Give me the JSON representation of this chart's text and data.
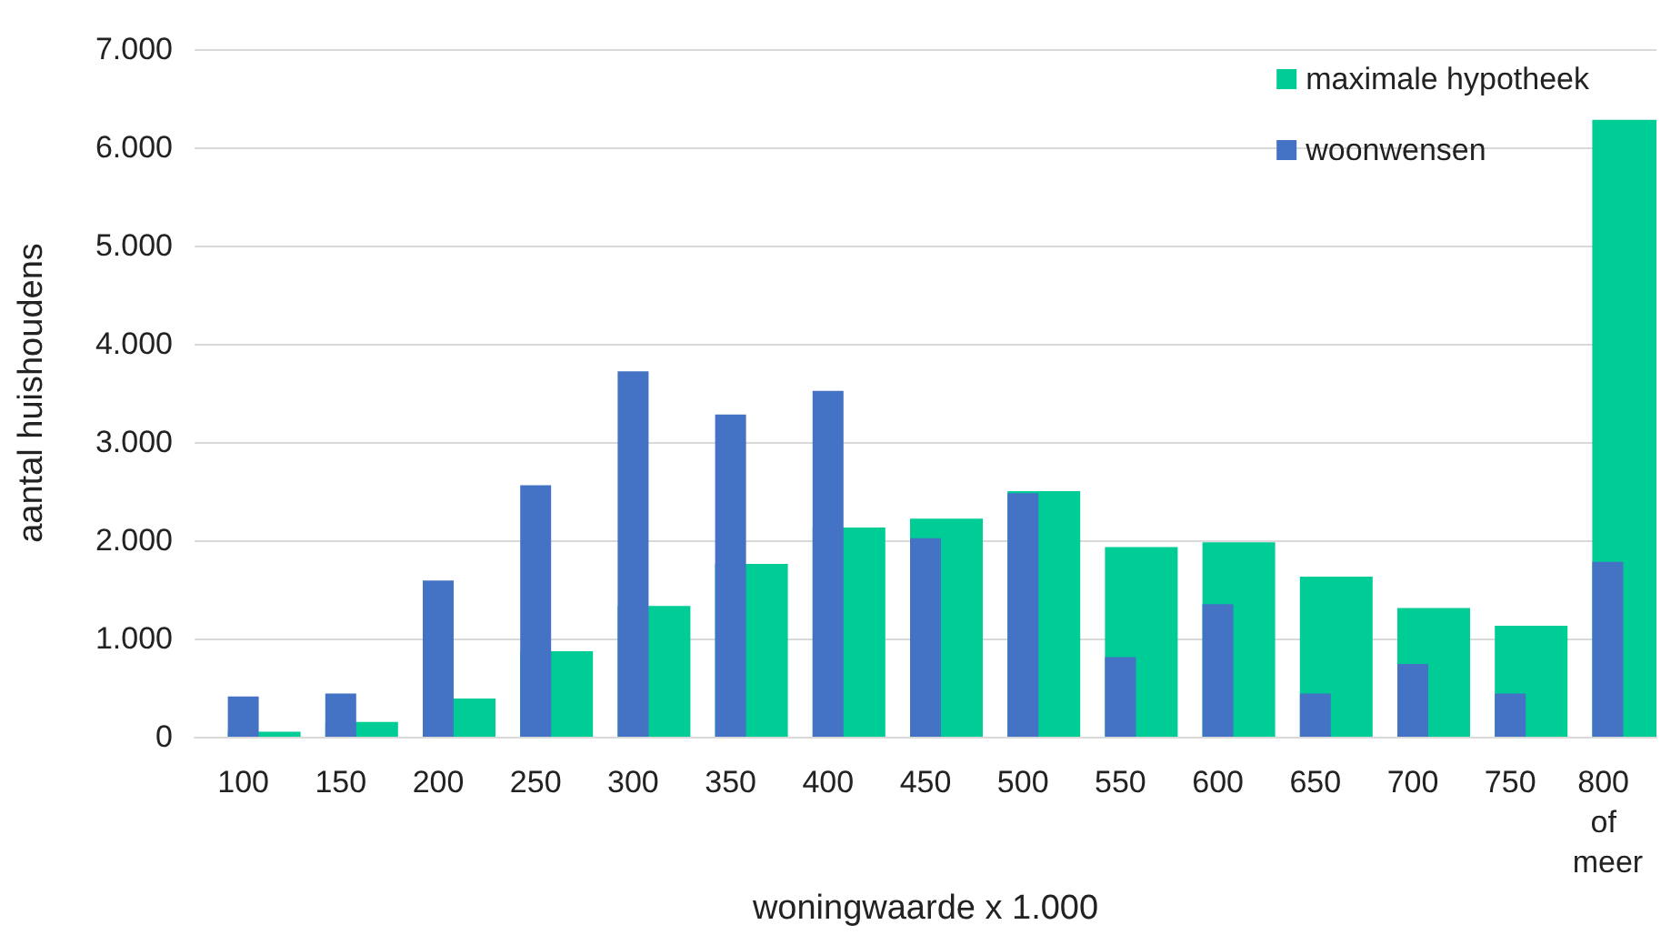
{
  "chart_data": {
    "type": "bar",
    "xlabel": "woningwaarde x 1.000",
    "ylabel": "aantal huishoudens",
    "categories": [
      "100",
      "150",
      "200",
      "250",
      "300",
      "350",
      "400",
      "450",
      "500",
      "550",
      "600",
      "650",
      "700",
      "750",
      "800 of meer"
    ],
    "series": [
      {
        "name": "maximale hypotheek",
        "color": "#00cc96",
        "values": [
          50,
          150,
          390,
          870,
          1330,
          1760,
          2130,
          2220,
          2500,
          1930,
          1980,
          1630,
          1310,
          1130,
          6280
        ]
      },
      {
        "name": "woonwensen",
        "color": "#4472c4",
        "values": [
          410,
          440,
          1590,
          2560,
          3720,
          3280,
          3520,
          2020,
          2480,
          810,
          1350,
          440,
          740,
          440,
          1780
        ]
      }
    ],
    "ylim": [
      0,
      7000
    ],
    "yticks": [
      {
        "value": 0,
        "label": "0"
      },
      {
        "value": 1000,
        "label": "1.000"
      },
      {
        "value": 2000,
        "label": "2.000"
      },
      {
        "value": 3000,
        "label": "3.000"
      },
      {
        "value": 4000,
        "label": "4.000"
      },
      {
        "value": 5000,
        "label": "5.000"
      },
      {
        "value": 6000,
        "label": "6.000"
      },
      {
        "value": 7000,
        "label": "7.000"
      }
    ],
    "grid": "y",
    "legend": "top right"
  }
}
